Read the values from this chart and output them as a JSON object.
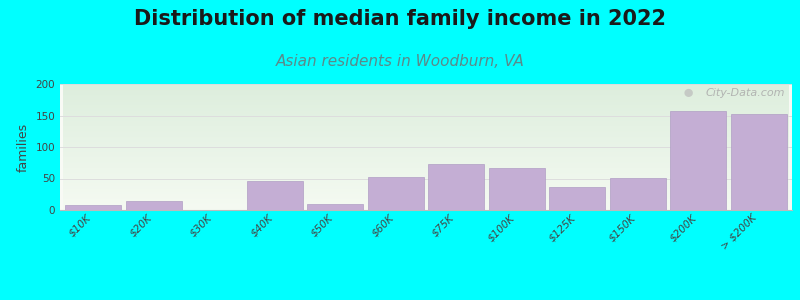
{
  "title": "Distribution of median family income in 2022",
  "subtitle": "Asian residents in Woodburn, VA",
  "ylabel": "families",
  "background_color": "#00FFFF",
  "bar_color": "#c4aed4",
  "bar_edge_color": "#b09ec4",
  "watermark": "City-Data.com",
  "categories": [
    "$10K",
    "$20K",
    "$30K",
    "$40K",
    "$50K",
    "$60K",
    "$75K",
    "$100K",
    "$125K",
    "$150K",
    "$200K",
    "> $200K"
  ],
  "values": [
    8,
    15,
    0,
    46,
    9,
    53,
    73,
    67,
    36,
    51,
    157,
    152
  ],
  "ylim": [
    0,
    200
  ],
  "yticks": [
    0,
    50,
    100,
    150,
    200
  ],
  "grid_color": "#dddddd",
  "title_fontsize": 15,
  "subtitle_fontsize": 11,
  "subtitle_color": "#5a8a8a",
  "ylabel_fontsize": 9,
  "tick_fontsize": 7.5,
  "plot_bg_color_top": "#e8f0e0",
  "plot_bg_color_bottom": "#f8faf5"
}
